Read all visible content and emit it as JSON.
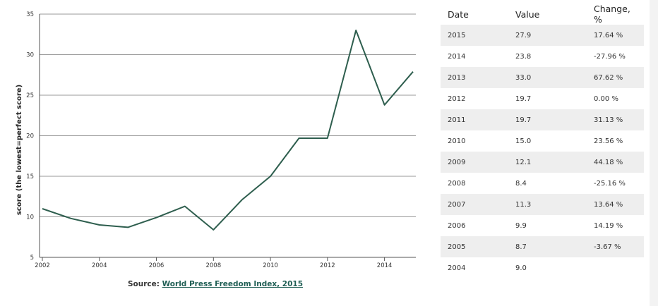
{
  "chart_data": {
    "type": "line",
    "ylabel": "score (the lowest=perfect score)",
    "xlabel": "",
    "ylim": [
      5,
      35
    ],
    "yticks": [
      5,
      10,
      15,
      20,
      25,
      30,
      35
    ],
    "xlim": [
      2002,
      2015
    ],
    "xticks": [
      2002,
      2004,
      2006,
      2008,
      2010,
      2012,
      2014
    ],
    "grid": "horizontal",
    "series": [
      {
        "x": [
          2002,
          2003,
          2004,
          2005,
          2006,
          2007,
          2008,
          2009,
          2010,
          2011,
          2012,
          2013,
          2014,
          2015
        ],
        "values": [
          11.0,
          9.8,
          9.0,
          8.7,
          9.9,
          11.3,
          8.4,
          12.1,
          15.0,
          19.7,
          19.7,
          33.0,
          23.8,
          27.9
        ],
        "color": "#2e5e4e"
      }
    ]
  },
  "source": {
    "prefix": "Source: ",
    "link_text": "World Press Freedom Index, 2015"
  },
  "table": {
    "headers": [
      "Date",
      "Value",
      "Change, %"
    ],
    "rows": [
      [
        "2015",
        "27.9",
        "17.64 %"
      ],
      [
        "2014",
        "23.8",
        "-27.96 %"
      ],
      [
        "2013",
        "33.0",
        "67.62 %"
      ],
      [
        "2012",
        "19.7",
        "0.00 %"
      ],
      [
        "2011",
        "19.7",
        "31.13 %"
      ],
      [
        "2010",
        "15.0",
        "23.56 %"
      ],
      [
        "2009",
        "12.1",
        "44.18 %"
      ],
      [
        "2008",
        "8.4",
        "-25.16 %"
      ],
      [
        "2007",
        "11.3",
        "13.64 %"
      ],
      [
        "2006",
        "9.9",
        "14.19 %"
      ],
      [
        "2005",
        "8.7",
        "-3.67 %"
      ],
      [
        "2004",
        "9.0",
        ""
      ]
    ]
  }
}
